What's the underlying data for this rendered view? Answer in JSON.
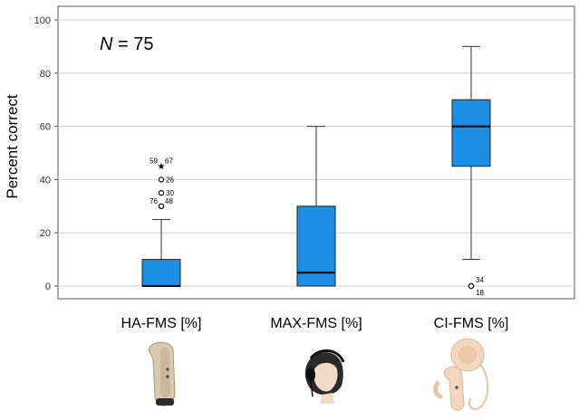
{
  "chart_data": {
    "type": "box",
    "ylabel": "Percent correct",
    "ylim": [
      -5,
      105
    ],
    "yticks": [
      0,
      20,
      40,
      60,
      80,
      100
    ],
    "grid": "horizontal",
    "annotation": {
      "italic": "N",
      "rest": " = 75"
    },
    "box_color": "#1a8fe3",
    "categories": [
      "HA-FMS [%]",
      "MAX-FMS [%]",
      "CI-FMS [%]"
    ],
    "boxes": [
      {
        "category": "HA-FMS [%]",
        "whisker_low": 0,
        "q1": 0,
        "median": 0,
        "q3": 10,
        "whisker_high": 25,
        "outliers": [
          {
            "value": 30,
            "marker": "circle",
            "labels": [
              "76",
              "48"
            ]
          },
          {
            "value": 35,
            "marker": "circle",
            "labels": [
              "30"
            ]
          },
          {
            "value": 40,
            "marker": "circle",
            "labels": [
              "26"
            ]
          },
          {
            "value": 45,
            "marker": "star",
            "labels": [
              "59",
              "67"
            ]
          }
        ]
      },
      {
        "category": "MAX-FMS [%]",
        "whisker_low": 0,
        "q1": 0,
        "median": 5,
        "q3": 30,
        "whisker_high": 60,
        "outliers": []
      },
      {
        "category": "CI-FMS [%]",
        "whisker_low": 10,
        "q1": 45,
        "median": 60,
        "q3": 70,
        "whisker_high": 90,
        "outliers": [
          {
            "value": 0,
            "marker": "circle",
            "labels": [
              "34",
              "18"
            ]
          }
        ]
      }
    ],
    "device_icons": [
      "hearing-aid-icon",
      "headphones-person-icon",
      "cochlear-implant-icon"
    ]
  }
}
